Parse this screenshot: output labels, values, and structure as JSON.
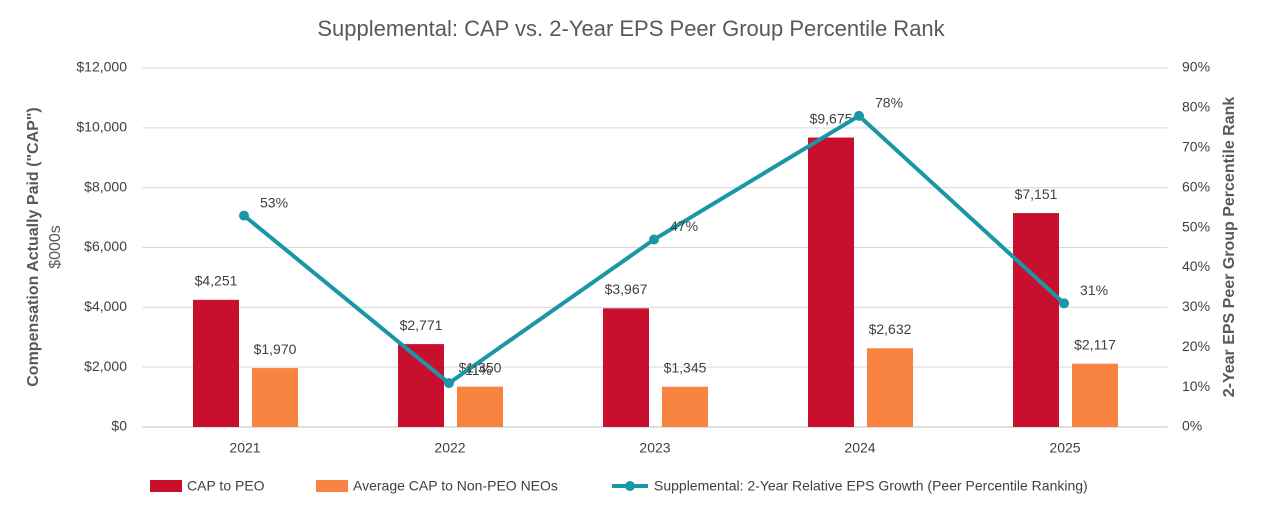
{
  "chart_data": {
    "type": "bar_line",
    "title": "Supplemental: CAP vs. 2-Year EPS Peer Group Percentile Rank",
    "y_label": "Compensation Actually Paid (\"CAP\")",
    "y_sublabel": "$000s",
    "y2_label": "2-Year EPS Peer Group Percentile Rank",
    "categories": [
      "2021",
      "2022",
      "2023",
      "2024",
      "2025"
    ],
    "series": [
      {
        "name": "CAP to PEO",
        "color": "#c8102e",
        "kind": "bar",
        "values": [
          4251,
          2771,
          3967,
          9675,
          7151
        ],
        "value_labels": [
          "$4,251",
          "$2,771",
          "$3,967",
          "$9,675",
          "$7,151"
        ]
      },
      {
        "name": "Average CAP to Non-PEO NEOs",
        "color": "#f98441",
        "kind": "bar",
        "values": [
          1970,
          1350,
          1345,
          2632,
          2117
        ],
        "value_labels": [
          "$1,970",
          "$1,350",
          "$1,345",
          "$2,632",
          "$2,117"
        ]
      },
      {
        "name": "Supplemental: 2-Year Relative EPS Growth (Peer Percentile Ranking)",
        "color": "#1a97a6",
        "kind": "line",
        "axis": "y2",
        "values": [
          53,
          11,
          47,
          78,
          31
        ],
        "value_labels": [
          "53%",
          "11%",
          "47%",
          "78%",
          "31%"
        ]
      }
    ],
    "ylim": [
      0,
      12000
    ],
    "yticks": [
      {
        "value": 0,
        "label": "$0"
      },
      {
        "value": 2000,
        "label": "$2,000"
      },
      {
        "value": 4000,
        "label": "$4,000"
      },
      {
        "value": 6000,
        "label": "$6,000"
      },
      {
        "value": 8000,
        "label": "$8,000"
      },
      {
        "value": 10000,
        "label": "$10,000"
      },
      {
        "value": 12000,
        "label": "$12,000"
      }
    ],
    "y2lim": [
      0,
      90
    ],
    "y2ticks": [
      {
        "value": 0,
        "label": "0%"
      },
      {
        "value": 10,
        "label": "10%"
      },
      {
        "value": 20,
        "label": "20%"
      },
      {
        "value": 30,
        "label": "30%"
      },
      {
        "value": 40,
        "label": "40%"
      },
      {
        "value": 50,
        "label": "50%"
      },
      {
        "value": 60,
        "label": "60%"
      },
      {
        "value": 70,
        "label": "70%"
      },
      {
        "value": 80,
        "label": "80%"
      },
      {
        "value": 90,
        "label": "90%"
      }
    ],
    "grid": true,
    "legend": "bottom"
  }
}
